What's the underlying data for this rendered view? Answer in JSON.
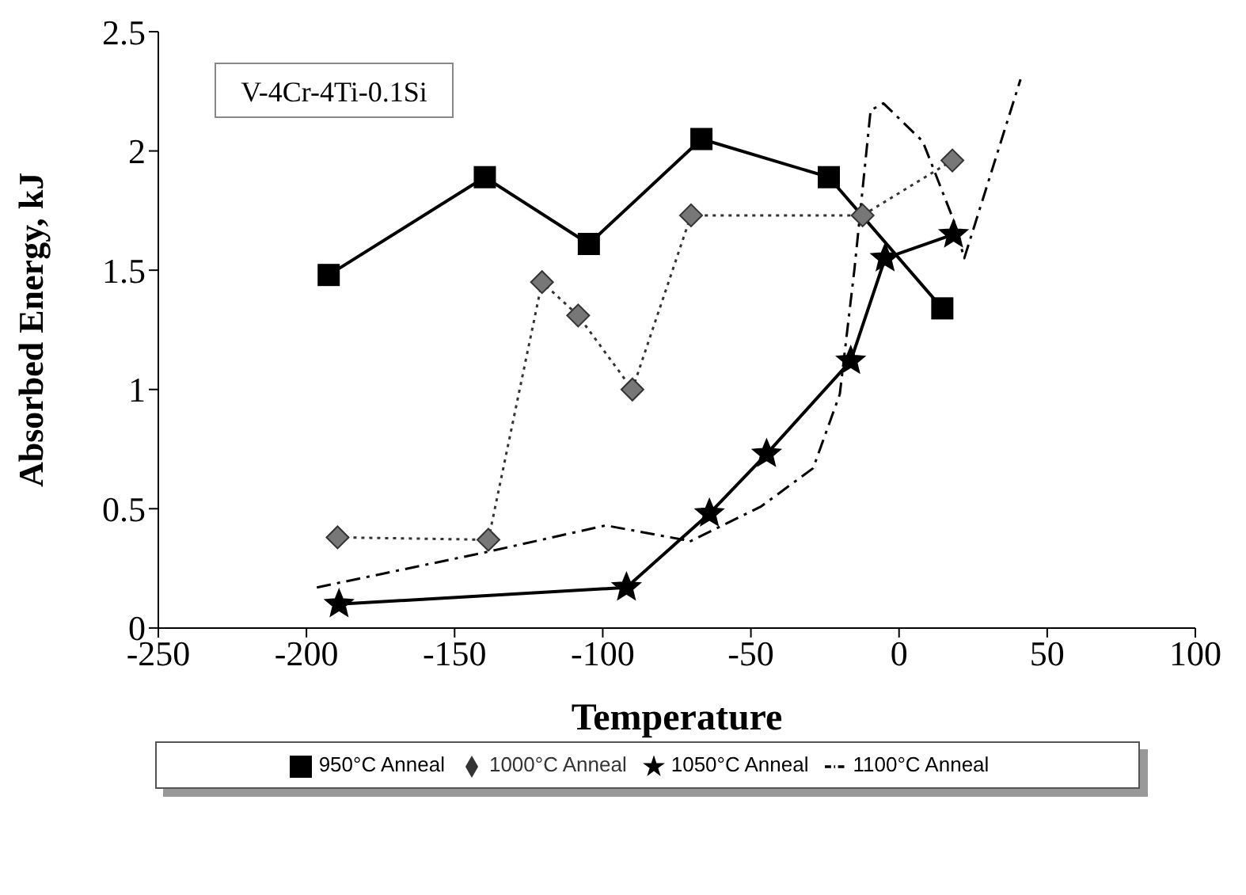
{
  "chart_data": {
    "type": "line",
    "xlabel": "Temperature",
    "ylabel": "Absorbed Energy, kJ",
    "annotations": [
      "V-4Cr-4Ti-0.1Si"
    ],
    "xlim": [
      -250,
      100
    ],
    "xticks": [
      -250,
      -200,
      -150,
      -100,
      -50,
      0,
      50,
      100
    ],
    "ylim": [
      0,
      2.5
    ],
    "yticks": [
      0,
      0.5,
      1,
      1.5,
      2,
      2.5
    ],
    "legend": "bottom",
    "series": [
      {
        "name": "950°C Anneal",
        "color": "#000000",
        "marker": "square",
        "line_style": "solid",
        "x": [
          -192.5,
          -139.8,
          -104.7,
          -66.7,
          -23.7,
          14.6
        ],
        "values": [
          1.48,
          1.89,
          1.61,
          2.05,
          1.89,
          1.34
        ]
      },
      {
        "name": "1000°C Anneal",
        "color": "#777777",
        "marker": "diamond",
        "line_style": "dotted",
        "x": [
          -189.5,
          -138.6,
          -120.5,
          -108.3,
          -90,
          -70.2,
          -12.3,
          18
        ],
        "values": [
          0.38,
          0.37,
          1.45,
          1.31,
          1.0,
          1.73,
          1.73,
          1.96
        ]
      },
      {
        "name": "1050°C Anneal",
        "color": "#000000",
        "marker": "star",
        "line_style": "solid",
        "x": [
          -189,
          -92,
          -64,
          -44.7,
          -16.3,
          -4.7,
          18.4
        ],
        "values": [
          0.1,
          0.17,
          0.48,
          0.73,
          1.12,
          1.55,
          1.65
        ]
      },
      {
        "name": "1100°C Anneal",
        "color": "#000000",
        "marker": "none",
        "line_style": "dashed",
        "x": [
          -196.5,
          -138.6,
          -99,
          -72.8,
          -71,
          -46.5,
          -29,
          -20,
          -15,
          -9.6,
          -5.3,
          8,
          18.4,
          22,
          41
        ],
        "values": [
          0.17,
          0.32,
          0.43,
          0.37,
          0.36,
          0.51,
          0.67,
          0.98,
          1.51,
          2.17,
          2.2,
          2.04,
          1.71,
          1.55,
          2.3
        ]
      }
    ]
  }
}
